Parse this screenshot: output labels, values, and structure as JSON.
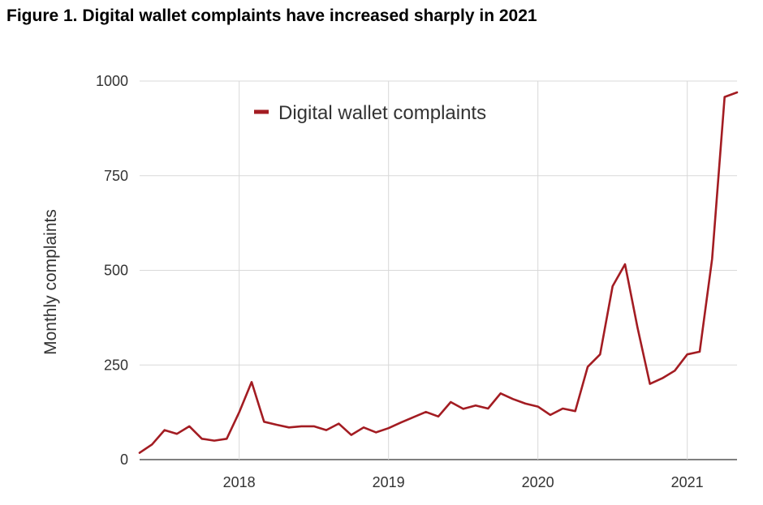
{
  "page": {
    "title": "Figure 1. Digital wallet complaints have increased sharply in 2021"
  },
  "chart_data": {
    "type": "line",
    "title": "Figure 1. Digital wallet complaints have increased sharply in 2021",
    "xlabel": "",
    "ylabel": "Monthly complaints",
    "x_axis": "date",
    "xlim": [
      "2017-05",
      "2021-05"
    ],
    "ylim": [
      0,
      1000
    ],
    "y_ticks": [
      0,
      250,
      500,
      750,
      1000
    ],
    "x_ticks": [
      "2018",
      "2019",
      "2020",
      "2021"
    ],
    "grid": true,
    "legend_position": "top-left-inside",
    "colors": {
      "series": "#a31c22",
      "grid": "#d9d9d9",
      "text": "#333333"
    },
    "series": [
      {
        "name": "Digital wallet complaints",
        "x": [
          "2017-05",
          "2017-06",
          "2017-07",
          "2017-08",
          "2017-09",
          "2017-10",
          "2017-11",
          "2017-12",
          "2018-01",
          "2018-02",
          "2018-03",
          "2018-04",
          "2018-05",
          "2018-06",
          "2018-07",
          "2018-08",
          "2018-09",
          "2018-10",
          "2018-11",
          "2018-12",
          "2019-01",
          "2019-02",
          "2019-03",
          "2019-04",
          "2019-05",
          "2019-06",
          "2019-07",
          "2019-08",
          "2019-09",
          "2019-10",
          "2019-11",
          "2019-12",
          "2020-01",
          "2020-02",
          "2020-03",
          "2020-04",
          "2020-05",
          "2020-06",
          "2020-07",
          "2020-08",
          "2020-09",
          "2020-10",
          "2020-11",
          "2020-12",
          "2021-01",
          "2021-02",
          "2021-03",
          "2021-04",
          "2021-05"
        ],
        "values": [
          18,
          40,
          78,
          68,
          88,
          55,
          50,
          55,
          125,
          205,
          100,
          92,
          85,
          88,
          88,
          78,
          95,
          65,
          85,
          72,
          83,
          98,
          112,
          126,
          114,
          152,
          134,
          143,
          135,
          175,
          160,
          148,
          140,
          118,
          135,
          128,
          245,
          278,
          458,
          516,
          350,
          200,
          215,
          235,
          278,
          285,
          530,
          958,
          970
        ]
      }
    ]
  }
}
